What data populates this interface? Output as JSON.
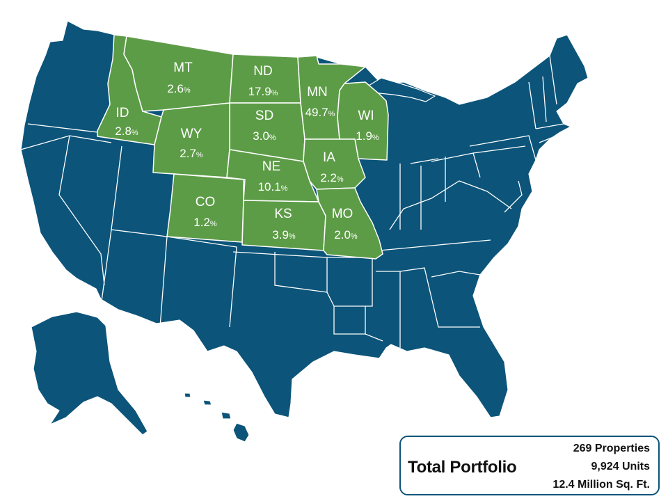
{
  "map": {
    "states": [
      {
        "abbr": "MT",
        "value": "2.6",
        "unit": "%"
      },
      {
        "abbr": "ND",
        "value": "17.9",
        "unit": "%"
      },
      {
        "abbr": "MN",
        "value": "49.7",
        "unit": "%"
      },
      {
        "abbr": "ID",
        "value": "2.8",
        "unit": "%"
      },
      {
        "abbr": "SD",
        "value": "3.0",
        "unit": "%"
      },
      {
        "abbr": "WI",
        "value": "1.9",
        "unit": "%"
      },
      {
        "abbr": "WY",
        "value": "2.7",
        "unit": "%"
      },
      {
        "abbr": "NE",
        "value": "10.1",
        "unit": "%"
      },
      {
        "abbr": "IA",
        "value": "2.2",
        "unit": "%"
      },
      {
        "abbr": "CO",
        "value": "1.2",
        "unit": "%"
      },
      {
        "abbr": "KS",
        "value": "3.9",
        "unit": "%"
      },
      {
        "abbr": "MO",
        "value": "2.0",
        "unit": "%"
      }
    ],
    "colors": {
      "highlight": "#5d9c47",
      "base": "#0c5479",
      "border": "#ffffff"
    }
  },
  "summary": {
    "title": "Total Portfolio",
    "properties": "269 Properties",
    "units": "9,924 Units",
    "square_feet": "12.4 Million Sq. Ft."
  }
}
